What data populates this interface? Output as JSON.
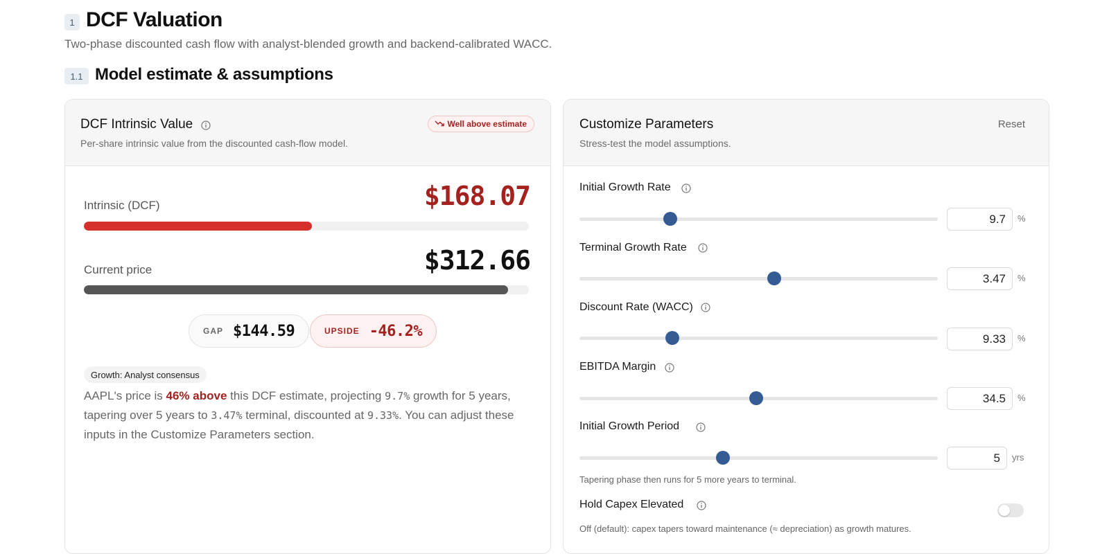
{
  "header": {
    "section_number": "1",
    "title": "DCF Valuation",
    "subtitle": "Two-phase discounted cash flow with analyst-blended growth and backend-calibrated WACC.",
    "subsection_number": "1.1",
    "subsection_title": "Model estimate & assumptions"
  },
  "valuation_card": {
    "title": "DCF Intrinsic Value",
    "subtitle": "Per-share intrinsic value from the discounted cash-flow model.",
    "status_pill": "Well above estimate",
    "intrinsic": {
      "label": "Intrinsic (DCF)",
      "value": "$168.07",
      "bar_fraction": 0.512
    },
    "current": {
      "label": "Current price",
      "value": "$312.66",
      "bar_fraction": 0.953
    },
    "gap": {
      "label": "GAP",
      "value": "$144.59"
    },
    "upside": {
      "label": "UPSIDE",
      "value": "-46.2%"
    },
    "growth_tag": "Growth: Analyst consensus",
    "summary": {
      "p1": "AAPL's price is ",
      "highlight": "46% above",
      "p2": " this DCF estimate, projecting ",
      "growth": "9.7%",
      "p3": " growth for 5 years, tapering over 5 years to ",
      "terminal": "3.47%",
      "p4": " terminal, discounted at ",
      "wacc": "9.33%",
      "p5": ". You can adjust these inputs in the Customize Parameters section."
    }
  },
  "params_card": {
    "title": "Customize Parameters",
    "subtitle": "Stress-test the model assumptions.",
    "reset_label": "Reset",
    "params": [
      {
        "label": "Initial Growth Rate",
        "value": "9.7",
        "unit": "%",
        "slider_fraction": 0.253
      },
      {
        "label": "Terminal Growth Rate",
        "value": "3.47",
        "unit": "%",
        "slider_fraction": 0.543
      },
      {
        "label": "Discount Rate (WACC)",
        "value": "9.33",
        "unit": "%",
        "slider_fraction": 0.26
      },
      {
        "label": "EBITDA Margin",
        "value": "34.5",
        "unit": "%",
        "slider_fraction": 0.494
      },
      {
        "label": "Initial Growth Period",
        "value": "5",
        "unit": "yrs",
        "slider_fraction": 0.401
      }
    ],
    "period_hint": "Tapering phase then runs for 5 more years to terminal.",
    "hold_capex": {
      "label": "Hold Capex Elevated",
      "enabled": false,
      "hint": "Off (default): capex tapers toward maintenance (≈ depreciation) as growth matures."
    }
  }
}
